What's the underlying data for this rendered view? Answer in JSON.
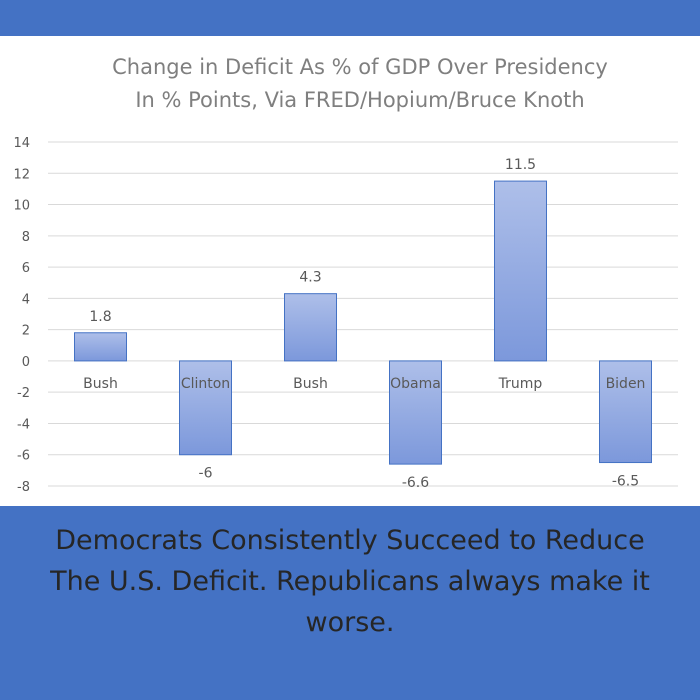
{
  "chart_data": {
    "type": "bar",
    "title": [
      "Change in Deficit As % of GDP Over Presidency",
      "In % Points, Via FRED/Hopium/Bruce Knoth"
    ],
    "categories": [
      "Bush",
      "Clinton",
      "Bush",
      "Obama",
      "Trump",
      "Biden"
    ],
    "values": [
      1.8,
      -6,
      4.3,
      -6.6,
      11.5,
      -6.5
    ],
    "data_labels": [
      "1.8",
      "-6",
      "4.3",
      "-6.6",
      "11.5",
      "-6.5"
    ],
    "ylim": [
      -8,
      14
    ],
    "yticks": [
      14,
      12,
      10,
      8,
      6,
      4,
      2,
      0,
      -2,
      -4,
      -6,
      -8
    ],
    "xlabel": "",
    "ylabel": "",
    "grid": true,
    "legend": "none",
    "bar_color": "#8fa8e0",
    "bar_edge_color": "#4472c4"
  },
  "caption": {
    "lines": [
      "Democrats Consistently Succeed to Reduce",
      "The U.S. Deficit.  Republicans always make it",
      "worse."
    ]
  },
  "colors": {
    "background": "#4472c4",
    "panel": "#ffffff",
    "caption_text": "#262626"
  }
}
